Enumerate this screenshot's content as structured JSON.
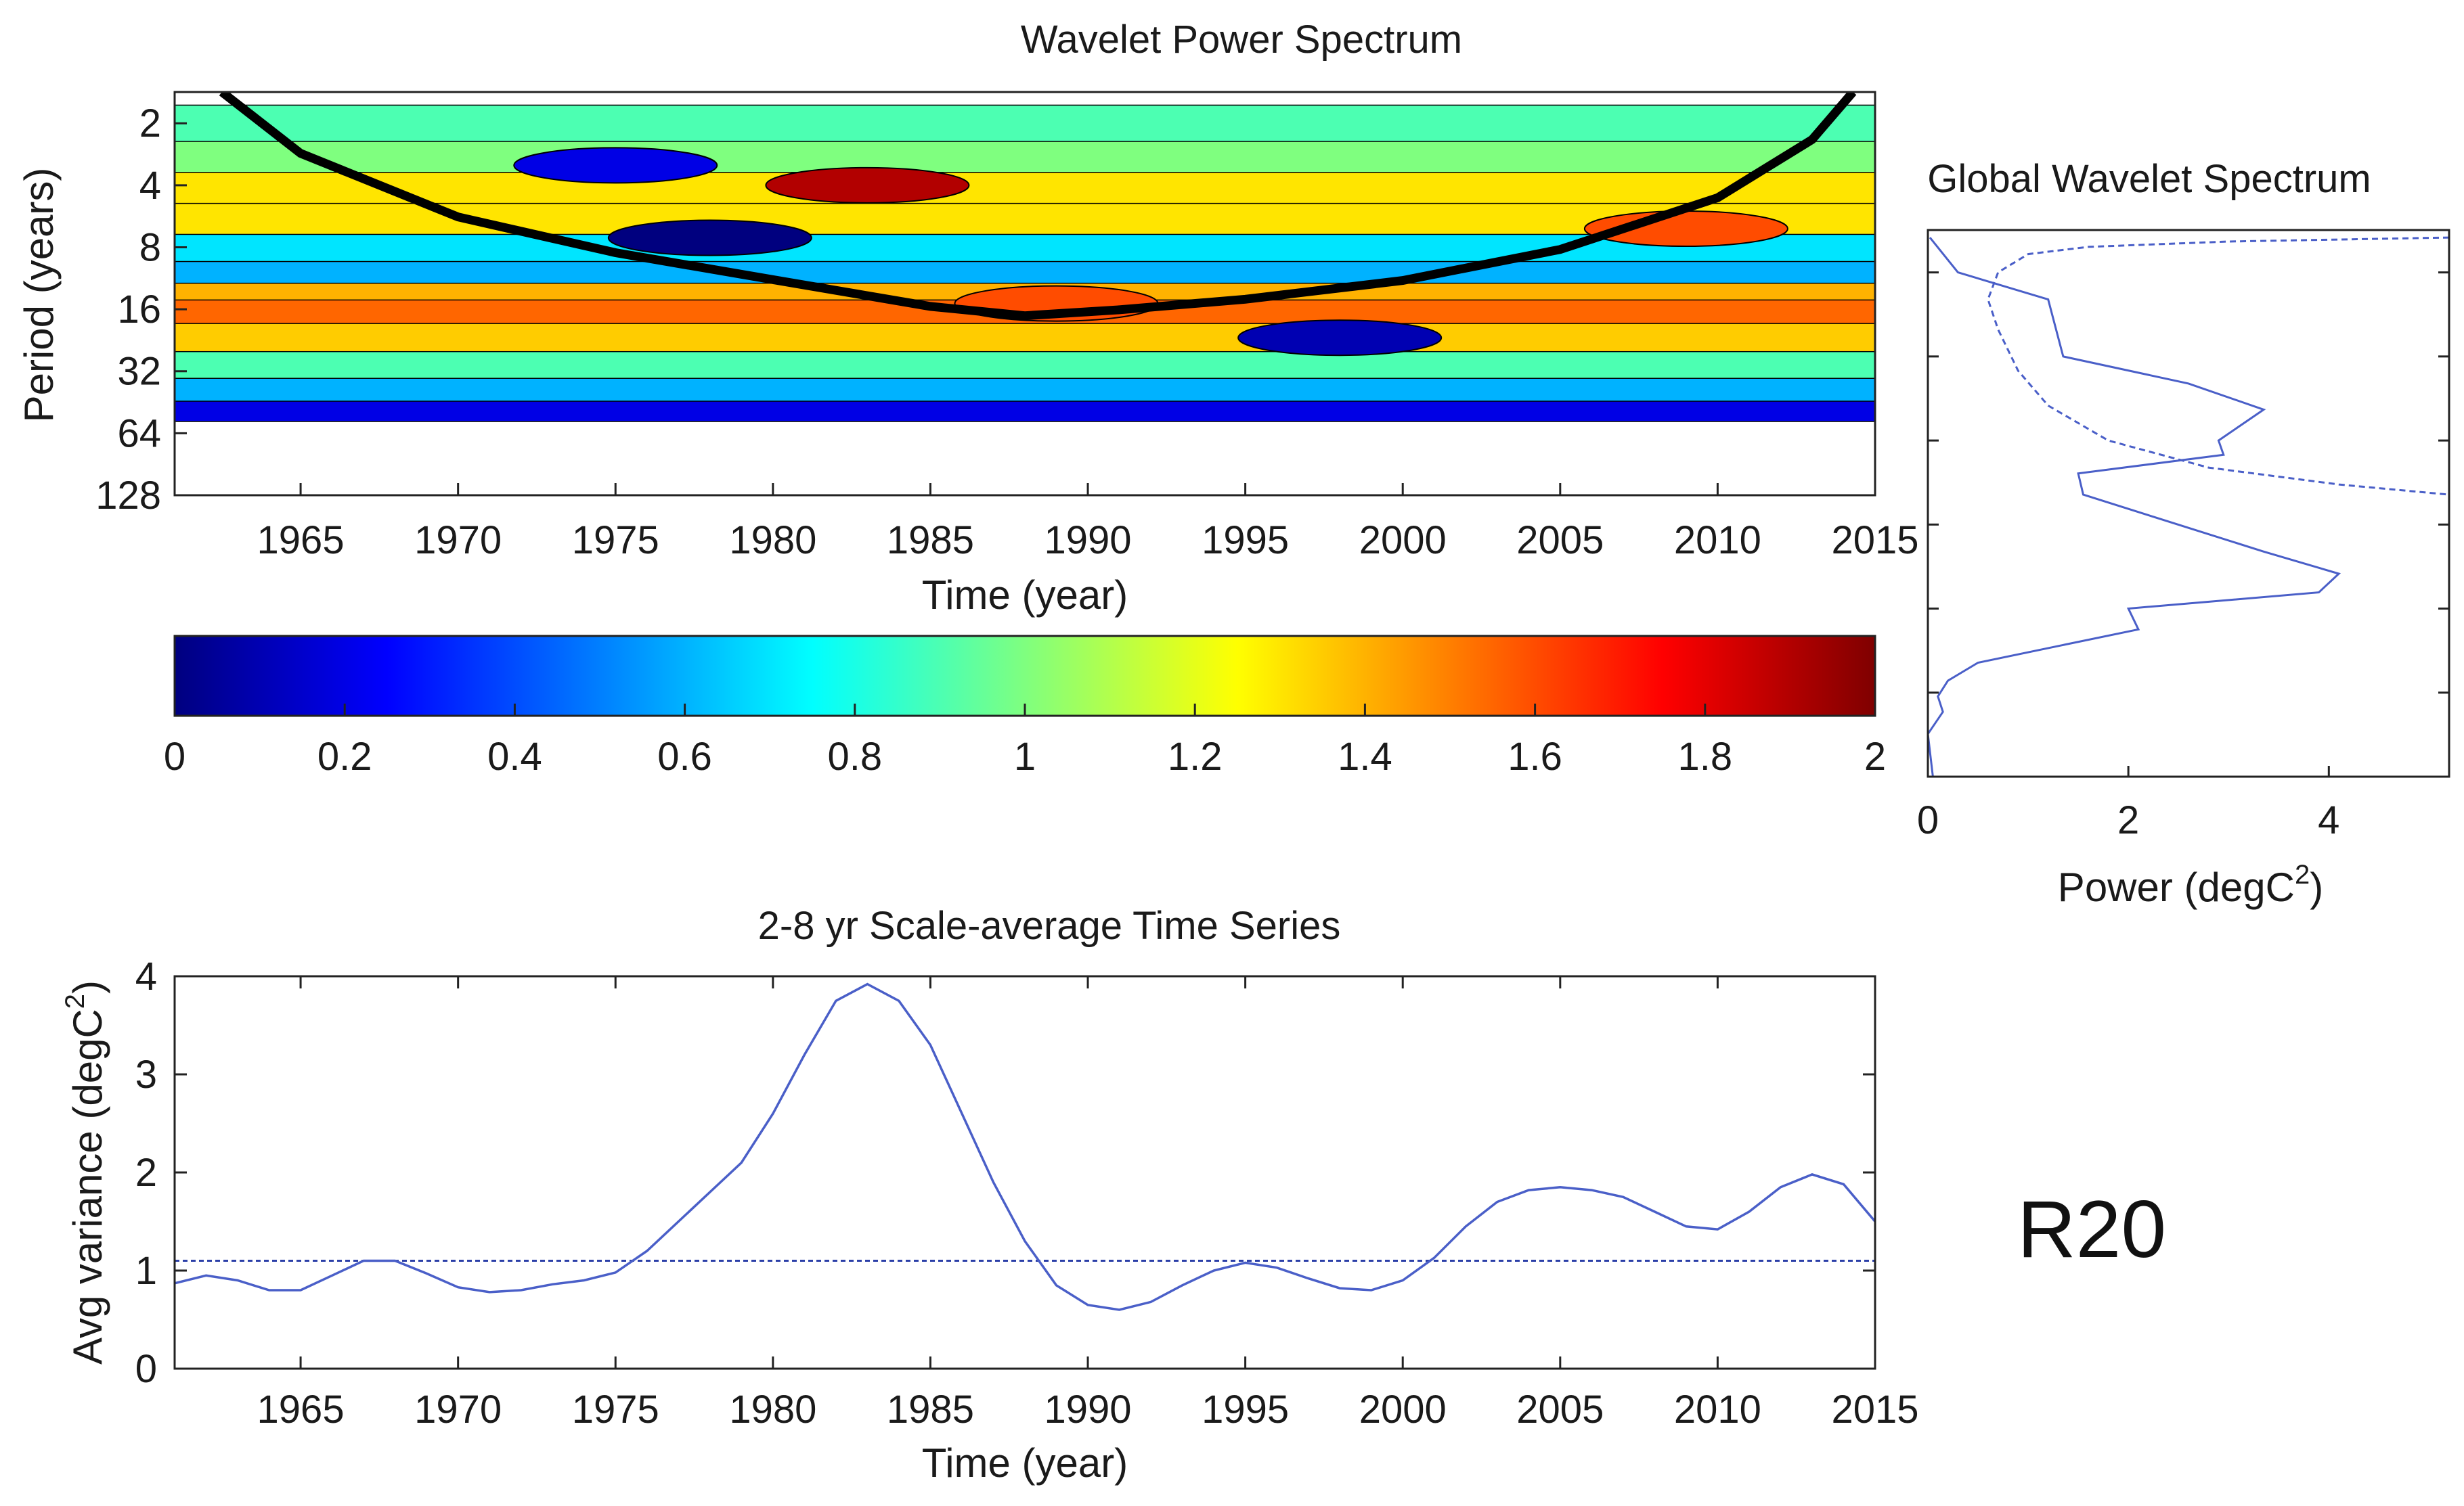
{
  "panel_label": "R20",
  "chart_data": [
    {
      "id": "wavelet",
      "type": "heatmap",
      "title": "Wavelet Power Spectrum",
      "xlabel": "Time (year)",
      "ylabel": "Period (years)",
      "xlim": [
        1961,
        2015
      ],
      "ylim": [
        1.41,
        128
      ],
      "x_ticks": [
        "1965",
        "1970",
        "1975",
        "1980",
        "1985",
        "1990",
        "1995",
        "2000",
        "2005",
        "2010",
        "2015"
      ],
      "y_ticks": [
        "2",
        "4",
        "8",
        "16",
        "32",
        "64",
        "128"
      ],
      "colorbar": {
        "min": 0,
        "max": 2,
        "ticks": [
          "0",
          "0.2",
          "0.4",
          "0.6",
          "0.8",
          "1",
          "1.2",
          "1.4",
          "1.6",
          "1.8",
          "2"
        ],
        "colors": [
          "#00007f",
          "#0000ff",
          "#007fff",
          "#00ffff",
          "#7fff7f",
          "#ffff00",
          "#ff7f00",
          "#ff0000",
          "#7f0000"
        ]
      },
      "power_bands": [
        {
          "period": 2,
          "power": 0.9
        },
        {
          "period": 3,
          "power": 1.0
        },
        {
          "period": 4,
          "power": 1.3
        },
        {
          "period": 6,
          "power": 1.3
        },
        {
          "period": 8,
          "power": 0.7
        },
        {
          "period": 11,
          "power": 0.6
        },
        {
          "period": 13,
          "power": 1.4
        },
        {
          "period": 16,
          "power": 1.55
        },
        {
          "period": 22,
          "power": 1.35
        },
        {
          "period": 30,
          "power": 0.9
        },
        {
          "period": 40,
          "power": 0.6
        },
        {
          "period": 50,
          "power": 0.2
        }
      ],
      "features": [
        {
          "year": 1983,
          "period": 4,
          "power": 1.9
        },
        {
          "year": 1989,
          "period": 15,
          "power": 1.6
        },
        {
          "year": 2009,
          "period": 6.5,
          "power": 1.6
        },
        {
          "year": 1978,
          "period": 7.2,
          "power": 0.0
        },
        {
          "year": 1975,
          "period": 3.2,
          "power": 0.2
        },
        {
          "year": 1998,
          "period": 22,
          "power": 0.1
        }
      ],
      "cone_of_influence": {
        "x": [
          1962.5,
          1965,
          1970,
          1975,
          1980,
          1985,
          1988,
          1991,
          1995,
          2000,
          2005,
          2010,
          2013,
          2014.3
        ],
        "period": [
          1.41,
          2.8,
          5.7,
          8.5,
          11.5,
          15.5,
          17.2,
          16.1,
          14.3,
          11.6,
          8.2,
          4.6,
          2.4,
          1.41
        ]
      }
    },
    {
      "id": "global",
      "type": "line",
      "title": "Global Wavelet Spectrum",
      "xlabel": "Power (degC",
      "xlabel_sup": "2",
      "xlabel_end": ")",
      "xlim": [
        0,
        5.2
      ],
      "x_ticks": [
        "0",
        "2",
        "4"
      ],
      "series": [
        {
          "name": "global_power",
          "power": [
            0.02,
            0.3,
            1.2,
            1.35,
            2.6,
            3.35,
            2.9,
            2.95,
            1.5,
            1.55,
            3.35,
            4.1,
            3.9,
            2.0,
            2.1,
            0.5,
            0.2,
            0.1,
            0.15,
            0.0,
            0.05
          ],
          "period": [
            1.5,
            2.0,
            2.5,
            4.0,
            5.0,
            6.2,
            8.0,
            9.0,
            10.5,
            12.5,
            20,
            24,
            28,
            32,
            38,
            50,
            58,
            66,
            75,
            90,
            128
          ]
        },
        {
          "name": "significance",
          "dashed": true,
          "power": [
            5.2,
            3.0,
            1.6,
            1.0,
            0.7,
            0.6,
            0.7,
            0.9,
            1.2,
            1.8,
            2.8,
            4.1,
            5.2
          ],
          "period": [
            1.5,
            1.55,
            1.62,
            1.72,
            2.0,
            2.5,
            3.2,
            4.5,
            6.0,
            8.0,
            10.0,
            11.5,
            12.5
          ]
        }
      ]
    },
    {
      "id": "scale",
      "type": "line",
      "title": "2-8 yr Scale-average Time Series",
      "xlabel": "Time (year)",
      "ylabel": "Avg variance (degC",
      "ylabel_sup": "2",
      "ylabel_end": ")",
      "xlim": [
        1961,
        2015
      ],
      "ylim": [
        0,
        4
      ],
      "x_ticks": [
        "1965",
        "1970",
        "1975",
        "1980",
        "1985",
        "1990",
        "1995",
        "2000",
        "2005",
        "2010",
        "2015"
      ],
      "y_ticks": [
        "0",
        "1",
        "2",
        "3",
        "4"
      ],
      "threshold": 1.1,
      "series": [
        {
          "name": "scale_average",
          "x": [
            1961,
            1962,
            1963,
            1964,
            1965,
            1966,
            1967,
            1968,
            1969,
            1970,
            1971,
            1972,
            1973,
            1974,
            1975,
            1976,
            1977,
            1978,
            1979,
            1980,
            1981,
            1982,
            1983,
            1984,
            1985,
            1986,
            1987,
            1988,
            1989,
            1990,
            1991,
            1992,
            1993,
            1994,
            1995,
            1996,
            1997,
            1998,
            1999,
            2000,
            2001,
            2002,
            2003,
            2004,
            2005,
            2006,
            2007,
            2008,
            2009,
            2010,
            2011,
            2012,
            2013,
            2014,
            2015
          ],
          "y": [
            0.87,
            0.95,
            0.9,
            0.8,
            0.8,
            0.95,
            1.1,
            1.1,
            0.97,
            0.83,
            0.78,
            0.8,
            0.86,
            0.9,
            0.98,
            1.2,
            1.5,
            1.8,
            2.1,
            2.6,
            3.2,
            3.75,
            3.92,
            3.75,
            3.3,
            2.6,
            1.9,
            1.3,
            0.85,
            0.65,
            0.6,
            0.68,
            0.85,
            1.0,
            1.08,
            1.03,
            0.92,
            0.82,
            0.8,
            0.9,
            1.13,
            1.45,
            1.7,
            1.82,
            1.85,
            1.82,
            1.75,
            1.6,
            1.45,
            1.42,
            1.6,
            1.85,
            1.98,
            1.88,
            1.5
          ]
        }
      ]
    }
  ]
}
